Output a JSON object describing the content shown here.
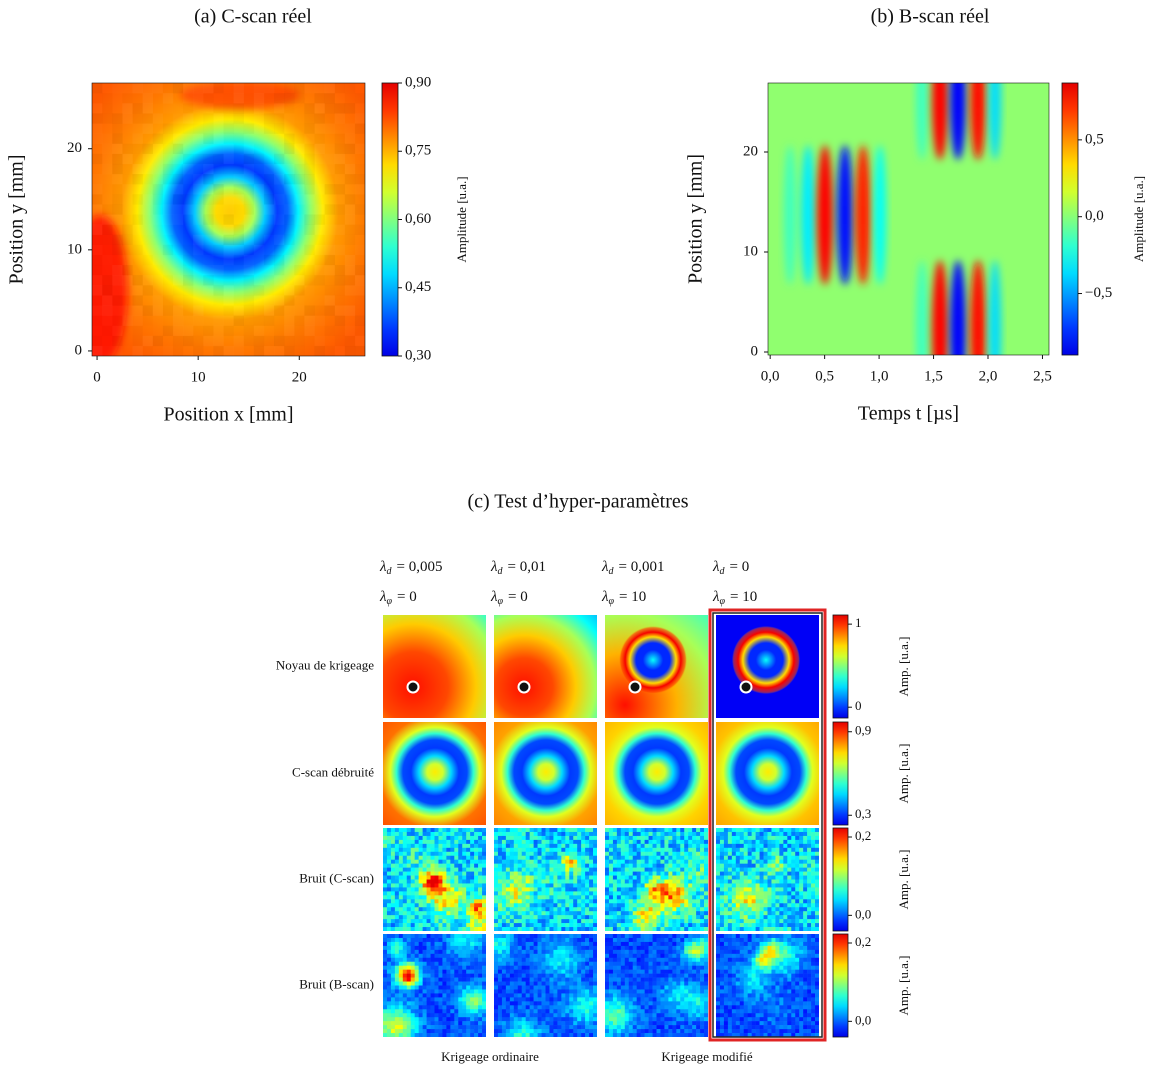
{
  "chart_data": [
    {
      "type": "heatmap",
      "title": "(a) C-scan réel",
      "x_label": "Position x [mm]",
      "y_label": "Position y [mm]",
      "xlim": [
        -0.5,
        26.5
      ],
      "xticks": [
        0,
        10,
        20
      ],
      "ylim": [
        -0.5,
        26.5
      ],
      "yticks": [
        0,
        10,
        20
      ],
      "colormap": "jet",
      "colorbar": {
        "label": "Amplitude [u.a.]",
        "lim": [
          0.3,
          0.9
        ],
        "ticks": [
          {
            "value": 0.9,
            "label": "0,90"
          },
          {
            "value": 0.75,
            "label": "0,75"
          },
          {
            "value": 0.6,
            "label": "0,60"
          },
          {
            "value": 0.45,
            "label": "0,45"
          },
          {
            "value": 0.3,
            "label": "0,30"
          }
        ]
      }
    },
    {
      "type": "heatmap",
      "title": "(b) B-scan réel",
      "x_label": "Temps t [µs]",
      "y_label": "Position y [mm]",
      "xlim": [
        -0.02,
        2.56
      ],
      "xticks": [
        {
          "value": 0,
          "label": "0,0"
        },
        {
          "value": 0.5,
          "label": "0,5"
        },
        {
          "value": 1,
          "label": "1,0"
        },
        {
          "value": 1.5,
          "label": "1,5"
        },
        {
          "value": 2,
          "label": "2,0"
        },
        {
          "value": 2.5,
          "label": "2,5"
        }
      ],
      "ylim": [
        -0.3,
        26.9
      ],
      "yticks": [
        0,
        10,
        20
      ],
      "colormap": "jet",
      "colorbar": {
        "label": "Amplitude [u.a.]",
        "lim": [
          -0.9,
          0.87
        ],
        "ticks": [
          {
            "value": 0.5,
            "label": "0,5"
          },
          {
            "value": 0,
            "label": "0,0"
          },
          {
            "value": -0.5,
            "label": "−0,5"
          }
        ]
      }
    },
    {
      "type": "heatmap_grid",
      "title": "(c) Test d’hyper-paramètres",
      "colormap": "jet",
      "highlight_column": 3,
      "highlight_color": "#e02424",
      "columns": [
        {
          "lambda_d": [
            "λ",
            "d",
            "= 0,005"
          ],
          "lambda_phi": [
            "λ",
            "φ",
            "= 0"
          ]
        },
        {
          "lambda_d": [
            "λ",
            "d",
            "= 0,01"
          ],
          "lambda_phi": [
            "λ",
            "φ",
            "= 0"
          ]
        },
        {
          "lambda_d": [
            "λ",
            "d",
            "= 0,001"
          ],
          "lambda_phi": [
            "λ",
            "φ",
            "= 10"
          ]
        },
        {
          "lambda_d": [
            "λ",
            "d",
            "= 0"
          ],
          "lambda_phi": [
            "λ",
            "φ",
            "= 10"
          ]
        }
      ],
      "rows": [
        {
          "label": "Noyau de krigeage",
          "colorbar": {
            "label": "Amp. [u.a.]",
            "lim": [
              -0.13,
              1.11
            ],
            "ticks": [
              1,
              0
            ]
          }
        },
        {
          "label": "C-scan débruité",
          "colorbar": {
            "label": "Amp. [u.a.]",
            "lim": [
              0.23,
              0.97
            ],
            "ticks": [
              {
                "value": 0.9,
                "label": "0,9"
              },
              {
                "value": 0.3,
                "label": "0,3"
              }
            ]
          }
        },
        {
          "label": "Bruit (C-scan)",
          "colorbar": {
            "label": "Amp. [u.a.]",
            "lim": [
              -0.04,
              0.223
            ],
            "ticks": [
              {
                "value": 0.2,
                "label": "0,2"
              },
              {
                "value": 0,
                "label": "0,0"
              }
            ]
          }
        },
        {
          "label": "Bruit (B-scan)",
          "colorbar": {
            "label": "Amp. [u.a.]",
            "lim": [
              -0.04,
              0.223
            ],
            "ticks": [
              {
                "value": 0.2,
                "label": "0,2"
              },
              {
                "value": 0,
                "label": "0,0"
              }
            ]
          }
        }
      ],
      "groups": [
        {
          "label": "Krigeage ordinaire"
        },
        {
          "label": "Krigeage modifié"
        }
      ]
    }
  ]
}
